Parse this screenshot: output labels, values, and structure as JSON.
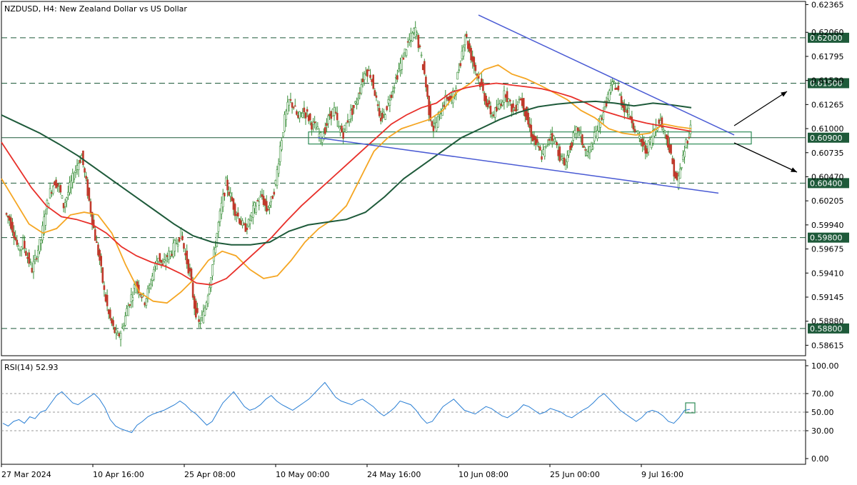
{
  "chart_data": [
    {
      "type": "candlestick",
      "symbol_label": "NZDUSD, H4:  New Zealand Dollar vs US Dollar",
      "ylim": [
        0.585,
        0.624
      ],
      "price_ticks": [
        "0.62365",
        "0.62060",
        "0.61795",
        "0.61530",
        "0.61265",
        "0.61000",
        "0.60735",
        "0.60470",
        "0.60205",
        "0.59940",
        "0.59675",
        "0.59410",
        "0.59145",
        "0.58880",
        "0.58615"
      ],
      "x_labels": [
        "27 Mar 2024",
        "10 Apr 16:00",
        "25 Apr 08:00",
        "10 May 00:00",
        "24 May 16:00",
        "10 Jun 08:00",
        "25 Jun 00:00",
        "9 Jul 16:00"
      ],
      "levels": [
        {
          "value": 0.62,
          "label": "0.62000"
        },
        {
          "value": 0.615,
          "label": "0.61500"
        },
        {
          "value": 0.609,
          "label": "0.60900"
        },
        {
          "value": 0.604,
          "label": "0.60400"
        },
        {
          "value": 0.598,
          "label": "0.59800"
        },
        {
          "value": 0.588,
          "label": "0.58800"
        }
      ],
      "close_path": [
        0.6007,
        0.6,
        0.5985,
        0.5965,
        0.5975,
        0.5958,
        0.5945,
        0.5962,
        0.5978,
        0.601,
        0.603,
        0.6042,
        0.6035,
        0.6015,
        0.603,
        0.6045,
        0.606,
        0.607,
        0.604,
        0.601,
        0.598,
        0.5955,
        0.592,
        0.5895,
        0.588,
        0.587,
        0.588,
        0.59,
        0.5915,
        0.593,
        0.592,
        0.591,
        0.5925,
        0.5945,
        0.596,
        0.5948,
        0.596,
        0.5965,
        0.5975,
        0.5985,
        0.596,
        0.594,
        0.5905,
        0.5885,
        0.5895,
        0.592,
        0.595,
        0.5985,
        0.6015,
        0.604,
        0.6025,
        0.601,
        0.6,
        0.599,
        0.5995,
        0.601,
        0.602,
        0.6025,
        0.601,
        0.602,
        0.604,
        0.608,
        0.611,
        0.613,
        0.6125,
        0.611,
        0.612,
        0.6115,
        0.6105,
        0.61,
        0.609,
        0.61,
        0.6115,
        0.612,
        0.61,
        0.6095,
        0.611,
        0.612,
        0.613,
        0.615,
        0.6165,
        0.616,
        0.614,
        0.611,
        0.6115,
        0.613,
        0.6145,
        0.616,
        0.6175,
        0.619,
        0.62,
        0.621,
        0.6185,
        0.616,
        0.612,
        0.61,
        0.611,
        0.6125,
        0.6135,
        0.613,
        0.615,
        0.6175,
        0.6205,
        0.6185,
        0.617,
        0.6155,
        0.614,
        0.6125,
        0.6115,
        0.612,
        0.613,
        0.614,
        0.6125,
        0.612,
        0.6135,
        0.6125,
        0.6105,
        0.609,
        0.608,
        0.607,
        0.608,
        0.6095,
        0.6085,
        0.607,
        0.606,
        0.6075,
        0.609,
        0.61,
        0.6085,
        0.607,
        0.608,
        0.6095,
        0.611,
        0.6125,
        0.614,
        0.615,
        0.614,
        0.6125,
        0.612,
        0.611,
        0.6095,
        0.6085,
        0.6075,
        0.6085,
        0.61,
        0.611,
        0.61,
        0.6085,
        0.606,
        0.604,
        0.606,
        0.6085,
        0.61
      ],
      "moving_averages": [
        {
          "color": "#f5a623",
          "values": [
            0.6045,
            0.602,
            0.5995,
            0.5985,
            0.599,
            0.6005,
            0.6008,
            0.6005,
            0.5985,
            0.595,
            0.592,
            0.591,
            0.5908,
            0.592,
            0.5935,
            0.5955,
            0.5965,
            0.596,
            0.5945,
            0.5935,
            0.5938,
            0.5955,
            0.5975,
            0.599,
            0.6,
            0.6015,
            0.6045,
            0.6075,
            0.609,
            0.61,
            0.6105,
            0.611,
            0.612,
            0.614,
            0.615,
            0.6165,
            0.617,
            0.616,
            0.6155,
            0.6148,
            0.614,
            0.6132,
            0.612,
            0.6112,
            0.61,
            0.6095,
            0.6093,
            0.6095,
            0.6105,
            0.6102,
            0.61
          ]
        },
        {
          "color": "#e8302a",
          "values": [
            0.6085,
            0.606,
            0.6035,
            0.6015,
            0.6003,
            0.6,
            0.5995,
            0.5985,
            0.597,
            0.596,
            0.5953,
            0.5948,
            0.594,
            0.593,
            0.5928,
            0.5935,
            0.595,
            0.5965,
            0.598,
            0.5998,
            0.6015,
            0.603,
            0.6045,
            0.606,
            0.6075,
            0.609,
            0.6105,
            0.6115,
            0.6123,
            0.6128,
            0.614,
            0.6145,
            0.6148,
            0.615,
            0.6148,
            0.6146,
            0.6144,
            0.614,
            0.6135,
            0.6128,
            0.612,
            0.6115,
            0.611,
            0.6106,
            0.6103,
            0.61,
            0.6097
          ]
        },
        {
          "color": "#1e5a3a",
          "values": [
            0.6115,
            0.6105,
            0.6095,
            0.6083,
            0.607,
            0.6055,
            0.604,
            0.6025,
            0.601,
            0.5995,
            0.5982,
            0.5975,
            0.5972,
            0.5972,
            0.5975,
            0.5987,
            0.5994,
            0.5997,
            0.6,
            0.6008,
            0.6025,
            0.6045,
            0.606,
            0.6075,
            0.609,
            0.61,
            0.611,
            0.6118,
            0.6124,
            0.6127,
            0.6129,
            0.613,
            0.6128,
            0.6125,
            0.6128,
            0.6126,
            0.6123
          ]
        }
      ],
      "trendlines": [
        {
          "color": "#4a5bd4",
          "from": [
            0.6225
          ],
          "to": [
            0.6093
          ]
        },
        {
          "color": "#4a5bd4",
          "from": [
            0.609
          ],
          "to": [
            0.6029
          ]
        }
      ],
      "zone": {
        "low": 0.6087,
        "high": 0.6094,
        "color": "#2e8b57"
      },
      "arrows": [
        "up",
        "down"
      ]
    },
    {
      "type": "line",
      "title": "RSI(14) 52.93",
      "ylim": [
        0,
        100
      ],
      "y_ticks": [
        "100.00",
        "70.00",
        "50.00",
        "30.00",
        "0.00"
      ],
      "levels": [
        70,
        50,
        30
      ],
      "color": "#2a7fd4",
      "values": [
        38,
        35,
        40,
        42,
        38,
        45,
        43,
        50,
        52,
        60,
        68,
        72,
        66,
        60,
        58,
        62,
        66,
        70,
        64,
        55,
        42,
        35,
        32,
        30,
        28,
        36,
        40,
        45,
        48,
        50,
        52,
        55,
        58,
        62,
        58,
        52,
        48,
        42,
        36,
        40,
        50,
        60,
        66,
        72,
        64,
        56,
        52,
        54,
        58,
        64,
        68,
        62,
        58,
        55,
        52,
        56,
        60,
        64,
        70,
        76,
        82,
        74,
        66,
        62,
        60,
        58,
        62,
        64,
        60,
        56,
        50,
        46,
        50,
        55,
        62,
        60,
        58,
        52,
        44,
        38,
        40,
        48,
        56,
        60,
        64,
        58,
        52,
        50,
        48,
        52,
        56,
        54,
        50,
        46,
        44,
        48,
        52,
        58,
        56,
        52,
        48,
        50,
        54,
        52,
        50,
        46,
        44,
        48,
        52,
        55,
        60,
        66,
        70,
        64,
        58,
        52,
        48,
        44,
        40,
        44,
        50,
        52,
        50,
        46,
        40,
        38,
        44,
        52,
        53
      ]
    }
  ]
}
